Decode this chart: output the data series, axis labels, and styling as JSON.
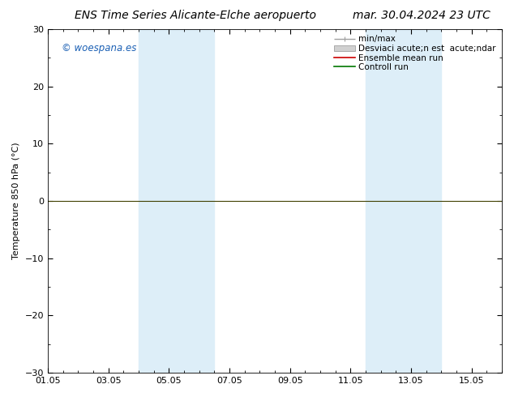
{
  "title_left": "ENS Time Series Alicante-Elche aeropuerto",
  "title_right": "mar. 30.04.2024 23 UTC",
  "ylabel": "Temperature 850 hPa (°C)",
  "ylim": [
    -30,
    30
  ],
  "yticks": [
    -30,
    -20,
    -10,
    0,
    10,
    20,
    30
  ],
  "xtick_labels": [
    "01.05",
    "03.05",
    "05.05",
    "07.05",
    "09.05",
    "11.05",
    "13.05",
    "15.05"
  ],
  "xtick_positions": [
    0,
    2,
    4,
    6,
    8,
    10,
    12,
    14
  ],
  "xlim": [
    0,
    15
  ],
  "shaded_bands": [
    {
      "x_start": 3.0,
      "x_end": 5.5,
      "color": "#ddeef8"
    },
    {
      "x_start": 10.5,
      "x_end": 13.0,
      "color": "#ddeef8"
    }
  ],
  "hline_y": 0,
  "hline_color": "#404000",
  "watermark": "© woespana.es",
  "watermark_color": "#1a5fb4",
  "legend_items": [
    {
      "label": "min/max",
      "color": "#a0a0a0",
      "style": "line"
    },
    {
      "label": "Desviaci acute;n est  acute;ndar",
      "color": "#d0d0d0",
      "style": "fill"
    },
    {
      "label": "Ensemble mean run",
      "color": "#cc0000",
      "style": "line"
    },
    {
      "label": "Controll run",
      "color": "#007700",
      "style": "line"
    }
  ],
  "background_color": "#ffffff",
  "plot_bg_color": "#ffffff",
  "title_fontsize": 10,
  "tick_fontsize": 8,
  "ylabel_fontsize": 8,
  "legend_fontsize": 7.5
}
